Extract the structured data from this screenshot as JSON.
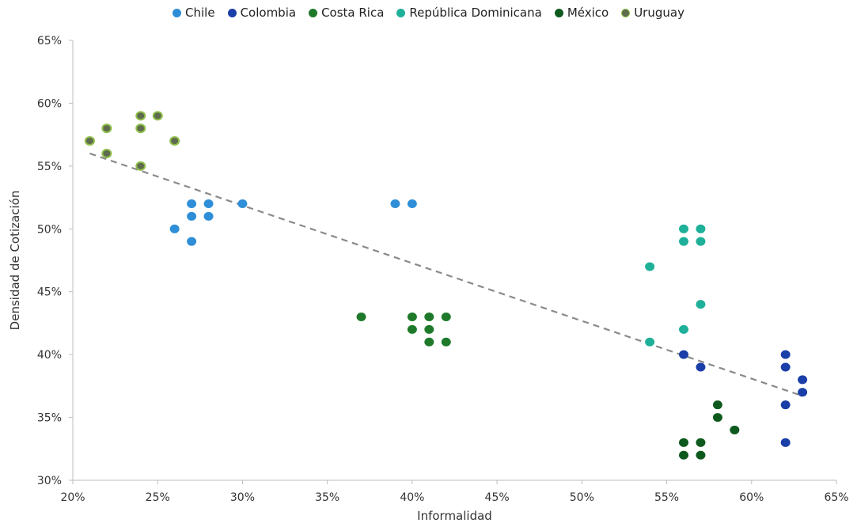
{
  "chart_data": {
    "type": "scatter",
    "title": "",
    "xlabel": "Informalidad",
    "ylabel": "Densidad de Cotización",
    "xlim": [
      20,
      65
    ],
    "ylim": [
      30,
      65
    ],
    "x_ticks": [
      "20%",
      "25%",
      "30%",
      "35%",
      "40%",
      "45%",
      "50%",
      "55%",
      "60%",
      "65%"
    ],
    "y_ticks": [
      "30%",
      "35%",
      "40%",
      "45%",
      "50%",
      "55%",
      "60%",
      "65%"
    ],
    "grid": false,
    "legend_position": "top",
    "series": [
      {
        "name": "Chile",
        "color": "#2e8fd8",
        "points": [
          [
            26,
            50
          ],
          [
            27,
            52
          ],
          [
            27,
            51
          ],
          [
            27,
            49
          ],
          [
            28,
            52
          ],
          [
            28,
            51
          ],
          [
            30,
            52
          ],
          [
            39,
            52
          ],
          [
            40,
            52
          ]
        ]
      },
      {
        "name": "Colombia",
        "color": "#1a3fa8",
        "points": [
          [
            56,
            40
          ],
          [
            57,
            39
          ],
          [
            62,
            40
          ],
          [
            62,
            39
          ],
          [
            62,
            36
          ],
          [
            62,
            33
          ],
          [
            63,
            38
          ],
          [
            63,
            37
          ]
        ]
      },
      {
        "name": "Costa Rica",
        "color": "#1e7a2a",
        "points": [
          [
            37,
            43
          ],
          [
            40,
            43
          ],
          [
            40,
            42
          ],
          [
            41,
            43
          ],
          [
            41,
            42
          ],
          [
            41,
            41
          ],
          [
            42,
            43
          ],
          [
            42,
            41
          ]
        ]
      },
      {
        "name": "República Dominicana",
        "color": "#1fb09a",
        "points": [
          [
            54,
            47
          ],
          [
            54,
            41
          ],
          [
            56,
            50
          ],
          [
            56,
            49
          ],
          [
            56,
            42
          ],
          [
            57,
            50
          ],
          [
            57,
            49
          ],
          [
            57,
            44
          ]
        ]
      },
      {
        "name": "México",
        "color": "#0e5a1e",
        "points": [
          [
            56,
            33
          ],
          [
            56,
            32
          ],
          [
            57,
            33
          ],
          [
            57,
            32
          ],
          [
            58,
            36
          ],
          [
            58,
            35
          ],
          [
            59,
            34
          ]
        ]
      },
      {
        "name": "Uruguay",
        "color": "#5e6b4e",
        "stroke": "#8fbf4a",
        "points": [
          [
            21,
            57
          ],
          [
            22,
            58
          ],
          [
            22,
            56
          ],
          [
            24,
            59
          ],
          [
            24,
            58
          ],
          [
            24,
            55
          ],
          [
            25,
            59
          ],
          [
            26,
            57
          ]
        ]
      }
    ],
    "trendline": {
      "style": "dashed",
      "color": "#8a8a8a",
      "from": [
        21,
        56
      ],
      "to": [
        62.8,
        36.8
      ]
    }
  }
}
